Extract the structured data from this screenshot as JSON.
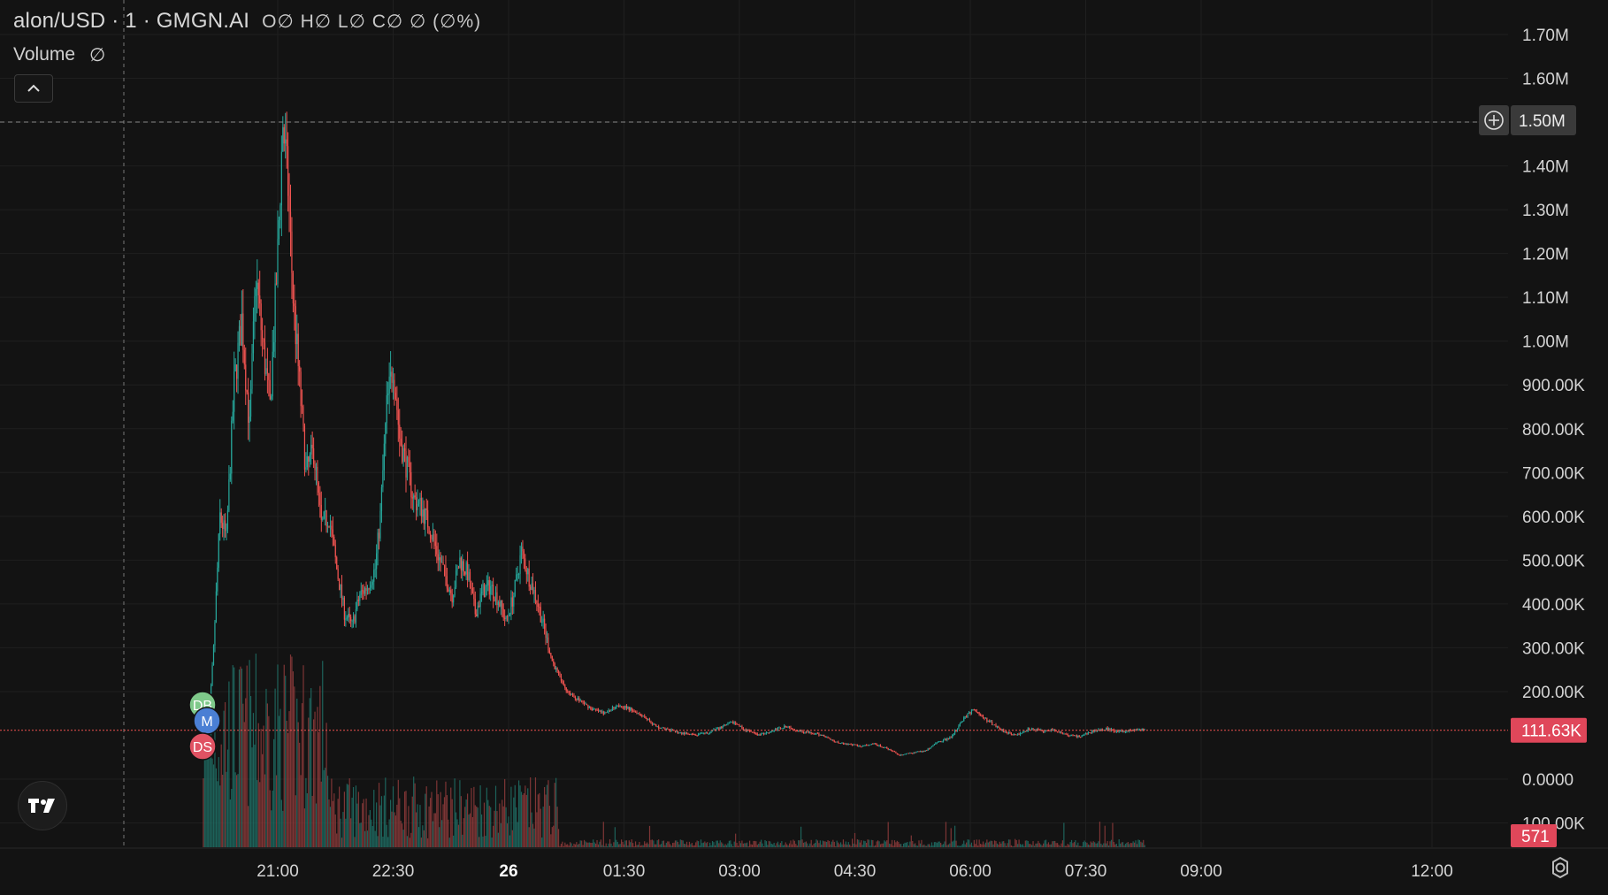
{
  "header": {
    "symbol": "alon/USD",
    "interval": "1",
    "source": "GMGN.AI",
    "ohlc": "O∅ H∅ L∅ C∅ ∅ (∅%)"
  },
  "volume_indicator": {
    "label": "Volume",
    "value": "∅"
  },
  "crosshair": {
    "price_label": "1.50M",
    "price": 1500000
  },
  "current_price": {
    "label": "111.63K",
    "value": 111630
  },
  "current_volume": {
    "label": "571"
  },
  "markers": [
    {
      "label": "DB",
      "color": "#7fc98a"
    },
    {
      "label": "M",
      "color": "#4a7fd4"
    },
    {
      "label": "DS",
      "color": "#e05263"
    }
  ],
  "colors": {
    "up": "#26a69a",
    "down": "#ef5350",
    "background": "#131313",
    "grid": "#1f1f1f"
  },
  "logo": "tradingview-logo",
  "settings_icon": "gear-icon",
  "chart_data": {
    "type": "candlestick",
    "title": "",
    "y_axis": {
      "labels": [
        "1.70M",
        "1.60M",
        "1.50M",
        "1.40M",
        "1.30M",
        "1.20M",
        "1.10M",
        "1.00M",
        "900.00K",
        "800.00K",
        "700.00K",
        "600.00K",
        "500.00K",
        "400.00K",
        "300.00K",
        "200.00K",
        "0.0000",
        "100.00K"
      ],
      "values": [
        1700000,
        1600000,
        1500000,
        1400000,
        1300000,
        1200000,
        1100000,
        1000000,
        900000,
        800000,
        700000,
        600000,
        500000,
        400000,
        300000,
        200000,
        0,
        -100000
      ]
    },
    "x_axis": {
      "labels": [
        "21:00",
        "22:30",
        "26",
        "01:30",
        "03:00",
        "04:30",
        "06:00",
        "07:30",
        "09:00",
        "12:00"
      ],
      "minutes": [
        1260,
        1350,
        1440,
        1530,
        1620,
        1710,
        1800,
        1890,
        1980,
        2160
      ],
      "bold_label": "26"
    },
    "x_start_minute": 1202,
    "x_end_minute": 2193,
    "price_path": [
      [
        1202,
        50000
      ],
      [
        1206,
        120000
      ],
      [
        1210,
        300000
      ],
      [
        1215,
        600000
      ],
      [
        1220,
        550000
      ],
      [
        1226,
        900000
      ],
      [
        1232,
        1050000
      ],
      [
        1238,
        800000
      ],
      [
        1243,
        1150000
      ],
      [
        1248,
        1000000
      ],
      [
        1254,
        850000
      ],
      [
        1260,
        1200000
      ],
      [
        1264,
        1500000
      ],
      [
        1268,
        1350000
      ],
      [
        1272,
        1100000
      ],
      [
        1277,
        900000
      ],
      [
        1282,
        700000
      ],
      [
        1288,
        750000
      ],
      [
        1294,
        580000
      ],
      [
        1300,
        600000
      ],
      [
        1306,
        480000
      ],
      [
        1312,
        380000
      ],
      [
        1318,
        350000
      ],
      [
        1324,
        420000
      ],
      [
        1330,
        440000
      ],
      [
        1336,
        480000
      ],
      [
        1340,
        600000
      ],
      [
        1345,
        850000
      ],
      [
        1350,
        950000
      ],
      [
        1355,
        780000
      ],
      [
        1360,
        720000
      ],
      [
        1366,
        640000
      ],
      [
        1372,
        620000
      ],
      [
        1378,
        580000
      ],
      [
        1384,
        520000
      ],
      [
        1390,
        470000
      ],
      [
        1396,
        420000
      ],
      [
        1402,
        500000
      ],
      [
        1408,
        470000
      ],
      [
        1414,
        380000
      ],
      [
        1420,
        430000
      ],
      [
        1426,
        440000
      ],
      [
        1432,
        410000
      ],
      [
        1438,
        360000
      ],
      [
        1444,
        420000
      ],
      [
        1450,
        520000
      ],
      [
        1456,
        460000
      ],
      [
        1462,
        410000
      ],
      [
        1468,
        340000
      ],
      [
        1474,
        270000
      ],
      [
        1480,
        230000
      ],
      [
        1486,
        200000
      ],
      [
        1495,
        180000
      ],
      [
        1505,
        160000
      ],
      [
        1515,
        150000
      ],
      [
        1525,
        170000
      ],
      [
        1535,
        160000
      ],
      [
        1545,
        145000
      ],
      [
        1555,
        120000
      ],
      [
        1565,
        112000
      ],
      [
        1575,
        105000
      ],
      [
        1585,
        100000
      ],
      [
        1595,
        105000
      ],
      [
        1605,
        118000
      ],
      [
        1615,
        130000
      ],
      [
        1625,
        112000
      ],
      [
        1635,
        100000
      ],
      [
        1645,
        110000
      ],
      [
        1655,
        120000
      ],
      [
        1665,
        112000
      ],
      [
        1675,
        105000
      ],
      [
        1685,
        100000
      ],
      [
        1695,
        85000
      ],
      [
        1705,
        80000
      ],
      [
        1715,
        75000
      ],
      [
        1725,
        80000
      ],
      [
        1735,
        70000
      ],
      [
        1745,
        55000
      ],
      [
        1755,
        60000
      ],
      [
        1765,
        65000
      ],
      [
        1775,
        85000
      ],
      [
        1785,
        95000
      ],
      [
        1795,
        140000
      ],
      [
        1803,
        160000
      ],
      [
        1810,
        140000
      ],
      [
        1818,
        125000
      ],
      [
        1826,
        110000
      ],
      [
        1836,
        100000
      ],
      [
        1846,
        115000
      ],
      [
        1856,
        110000
      ],
      [
        1866,
        112000
      ],
      [
        1876,
        100000
      ],
      [
        1886,
        98000
      ],
      [
        1896,
        110000
      ],
      [
        1906,
        115000
      ],
      [
        1916,
        108000
      ],
      [
        1926,
        112000
      ],
      [
        1936,
        113000
      ]
    ]
  }
}
